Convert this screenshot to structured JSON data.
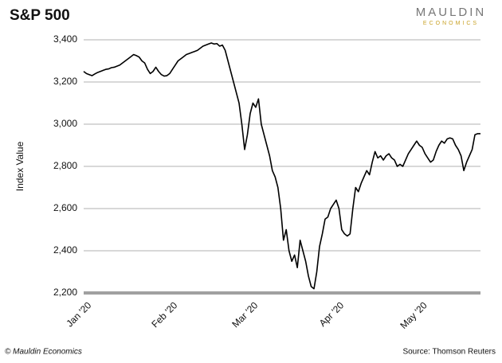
{
  "chart_data": {
    "type": "line",
    "title": "S&P 500",
    "ylabel": "Index Value",
    "logo": {
      "name": "MAULDIN",
      "sub": "ECONOMICS"
    },
    "footer_left": "© Mauldin Economics",
    "footer_right": "Source: Thomson Reuters",
    "color": "#000000",
    "grid": true,
    "ylim": [
      2200,
      3400
    ],
    "yticks": [
      {
        "value": 2200,
        "label": "2,200"
      },
      {
        "value": 2400,
        "label": "2,400"
      },
      {
        "value": 2600,
        "label": "2,600"
      },
      {
        "value": 2800,
        "label": "2,800"
      },
      {
        "value": 3000,
        "label": "3,000"
      },
      {
        "value": 3200,
        "label": "3,200"
      },
      {
        "value": 3400,
        "label": "3,400"
      }
    ],
    "categories": [
      "Jan '20",
      null,
      null,
      null,
      null,
      null,
      null,
      null,
      null,
      null,
      null,
      null,
      null,
      null,
      null,
      null,
      null,
      null,
      null,
      null,
      null,
      null,
      null,
      null,
      null,
      null,
      null,
      null,
      null,
      null,
      null,
      "Feb '20",
      null,
      null,
      null,
      null,
      null,
      null,
      null,
      null,
      null,
      null,
      null,
      null,
      null,
      null,
      null,
      null,
      null,
      null,
      null,
      null,
      null,
      null,
      null,
      null,
      null,
      null,
      null,
      null,
      "Mar '20",
      null,
      null,
      null,
      null,
      null,
      null,
      null,
      null,
      null,
      null,
      null,
      null,
      null,
      null,
      null,
      null,
      null,
      null,
      null,
      null,
      null,
      null,
      null,
      null,
      null,
      null,
      null,
      null,
      null,
      null,
      "Apr '20",
      null,
      null,
      null,
      null,
      null,
      null,
      null,
      null,
      null,
      null,
      null,
      null,
      null,
      null,
      null,
      null,
      null,
      null,
      null,
      null,
      null,
      null,
      null,
      null,
      null,
      null,
      null,
      null,
      null,
      "May '20",
      null,
      null,
      null,
      null,
      null,
      null,
      null,
      null,
      null,
      null,
      null,
      null,
      null,
      null,
      null,
      null,
      null,
      null,
      null,
      null,
      null,
      null
    ],
    "values": [
      3250,
      3240,
      3235,
      3230,
      3238,
      3245,
      3250,
      3255,
      3260,
      3262,
      3268,
      3270,
      3275,
      3280,
      3290,
      3300,
      3310,
      3320,
      3330,
      3325,
      3318,
      3300,
      3290,
      3260,
      3240,
      3250,
      3270,
      3250,
      3235,
      3228,
      3230,
      3240,
      3260,
      3280,
      3300,
      3310,
      3320,
      3330,
      3335,
      3340,
      3345,
      3350,
      3360,
      3370,
      3375,
      3380,
      3385,
      3380,
      3382,
      3370,
      3375,
      3350,
      3300,
      3250,
      3200,
      3150,
      3100,
      3000,
      2880,
      2950,
      3050,
      3100,
      3080,
      3120,
      3000,
      2950,
      2900,
      2850,
      2780,
      2750,
      2700,
      2600,
      2450,
      2500,
      2400,
      2350,
      2380,
      2320,
      2450,
      2400,
      2350,
      2280,
      2230,
      2220,
      2300,
      2420,
      2480,
      2550,
      2560,
      2600,
      2620,
      2640,
      2600,
      2500,
      2480,
      2470,
      2480,
      2600,
      2700,
      2680,
      2720,
      2750,
      2780,
      2760,
      2820,
      2870,
      2840,
      2850,
      2830,
      2850,
      2860,
      2840,
      2830,
      2800,
      2810,
      2800,
      2830,
      2860,
      2880,
      2900,
      2920,
      2900,
      2890,
      2860,
      2840,
      2820,
      2830,
      2870,
      2900,
      2920,
      2910,
      2930,
      2935,
      2930,
      2900,
      2880,
      2850,
      2780,
      2820,
      2850,
      2880,
      2950,
      2955,
      2955
    ]
  }
}
